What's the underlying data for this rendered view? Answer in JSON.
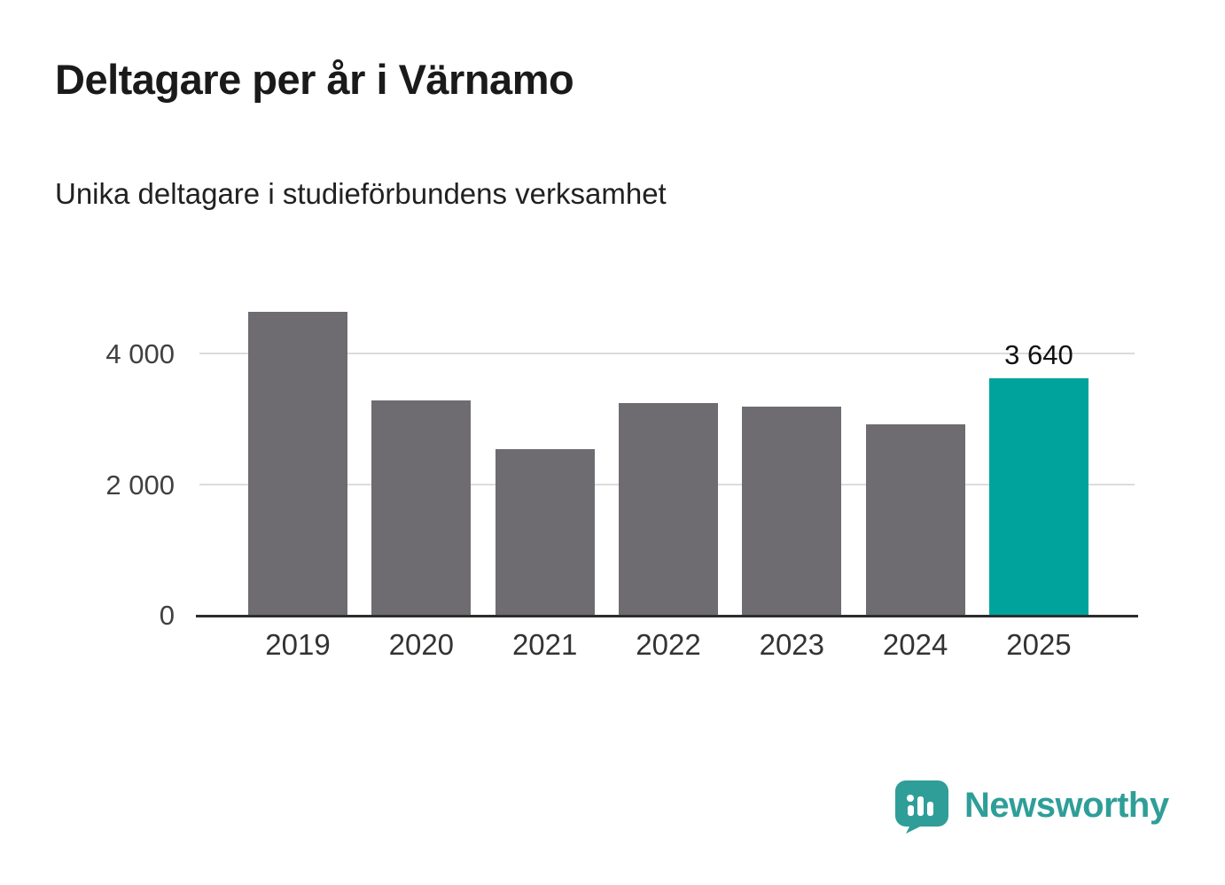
{
  "title": "Deltagare per år i Värnamo",
  "subtitle": "Unika deltagare i studieförbundens verksamhet",
  "brand": {
    "name": "Newsworthy",
    "color": "#2f9e98"
  },
  "colors": {
    "bar": "#6e6c70",
    "highlight_bar": "#00a39b",
    "axis": "#2d2d2d",
    "grid": "#dcdcdc"
  },
  "chart_data": {
    "type": "bar",
    "title": "Deltagare per år i Värnamo",
    "subtitle": "Unika deltagare i studieförbundens verksamhet",
    "categories": [
      "2019",
      "2020",
      "2021",
      "2022",
      "2023",
      "2024",
      "2025"
    ],
    "values": [
      4650,
      3300,
      2550,
      3250,
      3200,
      2930,
      3640
    ],
    "highlight_index": 6,
    "value_labels": {
      "6": "3 640"
    },
    "yticks": [
      0,
      2000,
      4000
    ],
    "ytick_labels": [
      "0",
      "2 000",
      "4 000"
    ],
    "ylim": [
      0,
      4950
    ],
    "grid": true,
    "legend": false,
    "xlabel": "",
    "ylabel": ""
  }
}
